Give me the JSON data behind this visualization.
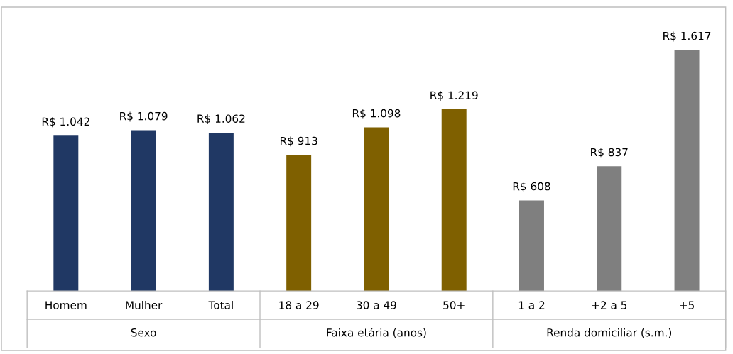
{
  "chart_data": {
    "type": "bar",
    "categories": [
      "Homem",
      "Mulher",
      "Total",
      "18 a 29",
      "30 a 49",
      "50+",
      "1 a 2",
      "+2 a 5",
      "+5"
    ],
    "values": [
      1042,
      1079,
      1062,
      913,
      1098,
      1219,
      608,
      837,
      1617
    ],
    "colors": [
      "#203864",
      "#203864",
      "#203864",
      "#7f6000",
      "#7f6000",
      "#7f6000",
      "#7f7f7f",
      "#7f7f7f",
      "#7f7f7f"
    ],
    "value_labels": [
      "R$ 1.042",
      "R$ 1.079",
      "R$ 1.062",
      "R$ 913",
      "R$ 1.098",
      "R$ 1.219",
      "R$ 608",
      "R$ 837",
      "R$ 1.617"
    ],
    "ylim": [
      0,
      1900
    ],
    "tick_labels": "x",
    "grid": false,
    "legend": false,
    "annotations": [
      "Sexo",
      "Faixa etária (anos)",
      "Renda domiciliar (s.m.)"
    ]
  }
}
